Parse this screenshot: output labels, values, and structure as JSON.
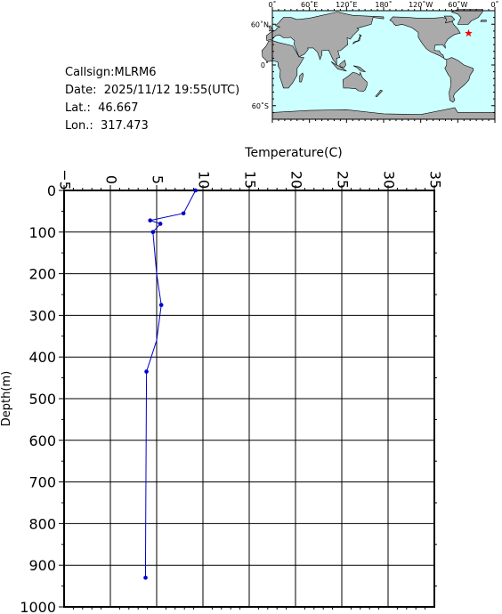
{
  "info": {
    "callsign": "Callsign:MLRM6",
    "date": "Date:  2025/11/12 19:55(UTC)",
    "lat": "Lat.:  46.667",
    "lon": "Lon.:  317.473"
  },
  "map": {
    "lon_ticks": [
      "0˚",
      "60˚E",
      "120˚E",
      "180˚",
      "120˚W",
      "60˚W",
      "0˚"
    ],
    "lat_ticks": [
      "60˚N",
      "0˚",
      "60˚S"
    ],
    "ocean_color": "#ccffff",
    "land_color": "#aaaaaa",
    "marker": {
      "lon": 317.473,
      "lat": 46.667,
      "color": "#ff0000",
      "icon": "star-icon"
    }
  },
  "chart_data": {
    "type": "line",
    "xlabel": "Temperature(C)",
    "ylabel": "Depth(m)",
    "xlim": [
      -5,
      35
    ],
    "ylim": [
      0,
      1000
    ],
    "x_ticks": [
      -5,
      0,
      5,
      10,
      15,
      20,
      25,
      30,
      35
    ],
    "y_ticks": [
      0,
      100,
      200,
      300,
      400,
      500,
      600,
      700,
      800,
      900,
      1000
    ],
    "grid": true,
    "line_color": "#0000cc",
    "series": [
      {
        "x": [
          9.2,
          7.9,
          4.3,
          5.4,
          4.6,
          5.0,
          5.5,
          5.0,
          3.9,
          3.8,
          3.8
        ],
        "y": [
          0,
          55,
          72,
          80,
          100,
          200,
          275,
          360,
          435,
          880,
          930
        ]
      }
    ],
    "markers": {
      "x": [
        9.2,
        7.9,
        4.3,
        5.4,
        4.6,
        5.5,
        3.9,
        3.8
      ],
      "y": [
        0,
        55,
        72,
        80,
        100,
        275,
        435,
        930
      ]
    }
  }
}
